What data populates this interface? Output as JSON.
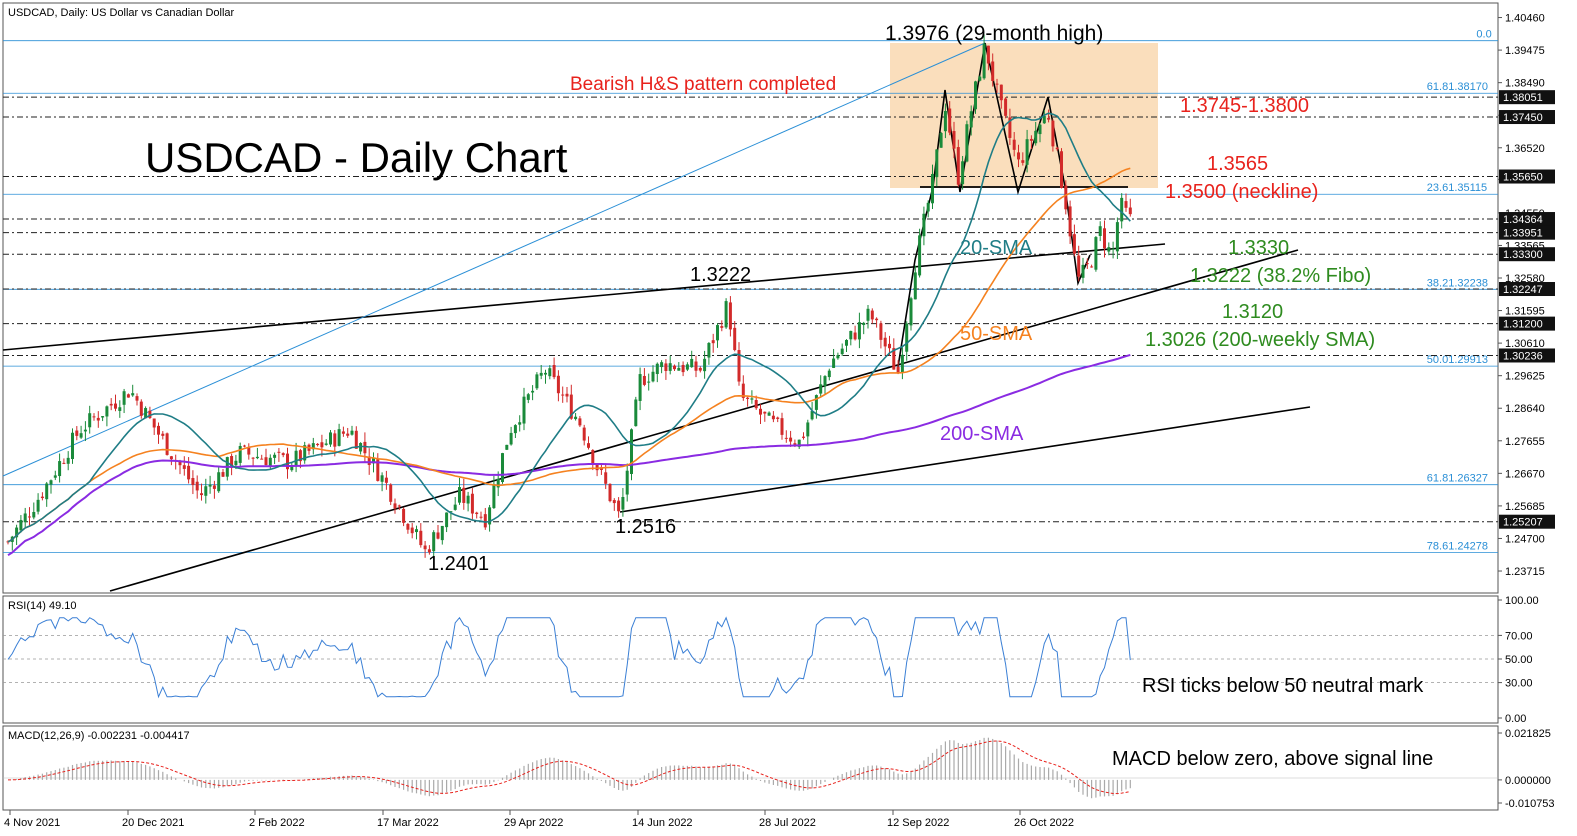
{
  "header": {
    "symbol_info": "USDCAD, Daily:  US Dollar vs Canadian Dollar",
    "rsi_label": "RSI(14) 49.10",
    "macd_label": "MACD(12,26,9) -0.002231 -0.004417"
  },
  "colors": {
    "sma20": "#1f7d86",
    "sma50": "#f58220",
    "sma200": "#8a2be2",
    "indicator": "#3a7fd5",
    "fibo": "#2a8fd6",
    "red_text": "#e8221c",
    "green_text": "#2e8b1f",
    "box_fill": "#f9d8b0"
  },
  "chart_data": [
    {
      "type": "candlestick",
      "title": "USDCAD - Daily Chart",
      "x_tick_labels": [
        "4 Nov 2021",
        "20 Dec 2021",
        "2 Feb 2022",
        "17 Mar 2022",
        "29 Apr 2022",
        "14 Jun 2022",
        "28 Jul 2022",
        "12 Sep 2022",
        "26 Oct 2022"
      ],
      "y_tick_labels": [
        "1.40460",
        "1.39475",
        "1.38490",
        "1.37505",
        "1.36520",
        "1.35565",
        "1.34550",
        "1.33565",
        "1.32580",
        "1.31595",
        "1.30610",
        "1.29625",
        "1.28640",
        "1.27655",
        "1.26670",
        "1.25685",
        "1.24700",
        "1.23715"
      ],
      "ylim": [
        1.2305,
        1.409
      ],
      "price_tags": [
        "1.38051",
        "1.37450",
        "1.35650",
        "1.34364",
        "1.33951",
        "1.33300",
        "1.32247",
        "1.31200",
        "1.30236",
        "1.25207"
      ],
      "fibo_levels": [
        {
          "label": "0.0",
          "value": 1.3976
        },
        {
          "label": "61.81.38170",
          "value": 1.3817
        },
        {
          "label": "23.61.35115",
          "value": 1.35115
        },
        {
          "label": "38.21.32238",
          "value": 1.32238
        },
        {
          "label": "50.01.29913",
          "value": 1.29913
        },
        {
          "label": "61.81.26327",
          "value": 1.26327
        },
        {
          "label": "78.61.24278",
          "value": 1.24278
        }
      ],
      "series": [
        {
          "name": "20-SMA",
          "color": "#1f7d86"
        },
        {
          "name": "50-SMA",
          "color": "#f58220"
        },
        {
          "name": "200-SMA",
          "color": "#8a2be2"
        }
      ],
      "annotations": {
        "high": "1.3976 (29-month high)",
        "pattern": "Bearish H&S pattern completed",
        "zone": "1.3745-1.3800",
        "level_3565": "1.3565",
        "neckline": "1.3500 (neckline)",
        "level_3330": "1.3330",
        "fibo_382": "1.3222 (38.2% Fibo)",
        "level_3120": "1.3120",
        "weekly_sma": "1.3026 (200-weekly SMA)",
        "low_3222": "1.3222",
        "low_2516": "1.2516",
        "low_2401": "1.2401"
      }
    },
    {
      "type": "line",
      "name": "RSI",
      "y_tick_labels": [
        "100.00",
        "70.00",
        "50.00",
        "30.00",
        "0.00"
      ],
      "ylim": [
        0,
        100
      ],
      "last_value": 49.1,
      "annotation": "RSI ticks below 50 neutral mark"
    },
    {
      "type": "bar",
      "name": "MACD",
      "y_tick_labels": [
        "0.021825",
        "0.000000",
        "-0.010753"
      ],
      "macd": -0.002231,
      "signal": -0.004417,
      "annotation": "MACD below zero, above signal line"
    }
  ]
}
